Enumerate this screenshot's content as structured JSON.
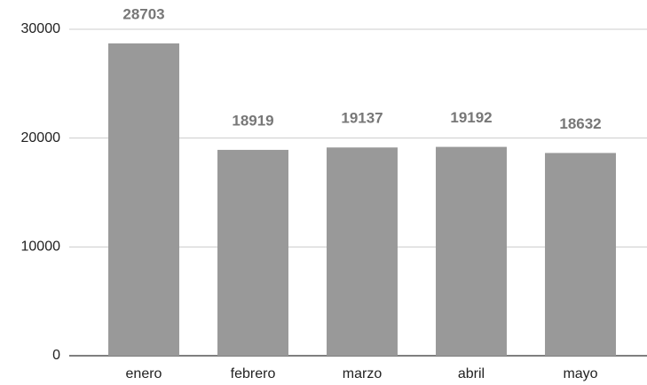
{
  "chart_data": {
    "type": "bar",
    "categories": [
      "enero",
      "febrero",
      "marzo",
      "abril",
      "mayo"
    ],
    "values": [
      28703,
      18919,
      19137,
      19192,
      18632
    ],
    "color": "#999999",
    "ylim": [
      0,
      30000
    ],
    "yticks": [
      0,
      10000,
      20000,
      30000
    ],
    "grid": true
  }
}
